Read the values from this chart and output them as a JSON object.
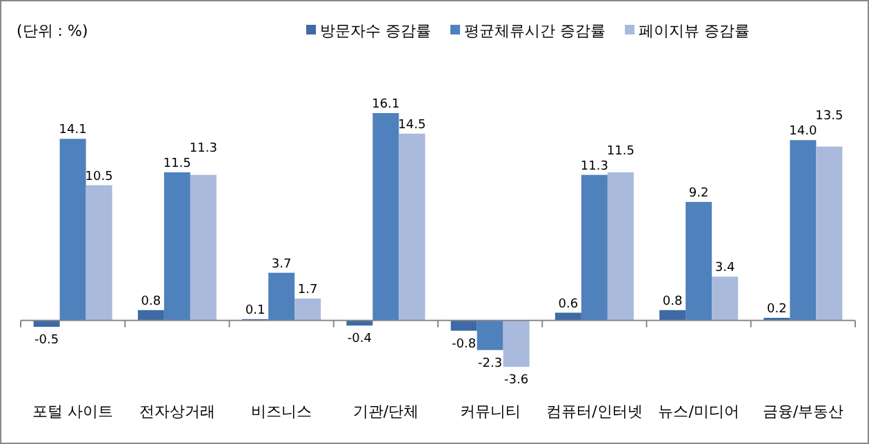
{
  "chart_data": {
    "type": "bar",
    "annotations": [
      "(단위 : %)"
    ],
    "categories": [
      "포털 사이트",
      "전자상거래",
      "비즈니스",
      "기관/단체",
      "커뮤니티",
      "컴퓨터/인터넷",
      "뉴스/미디어",
      "금융/부동산"
    ],
    "series": [
      {
        "name": "방문자수 증감률",
        "color": "#3e6aa6",
        "values": [
          -0.5,
          0.8,
          0.1,
          -0.4,
          -0.8,
          0.6,
          0.8,
          0.2
        ],
        "value_labels": [
          "-0.5",
          "0.8",
          "0.1",
          "-0.4",
          "-0.8",
          "0.6",
          "0.8",
          "0.2"
        ]
      },
      {
        "name": "평균체류시간 증감률",
        "color": "#4f81bd",
        "values": [
          14.1,
          11.5,
          3.7,
          16.1,
          -2.3,
          11.3,
          9.2,
          14.0
        ],
        "value_labels": [
          "14.1",
          "11.5",
          "3.7",
          "16.1",
          "-2.3",
          "11.3",
          "9.2",
          "14.0"
        ]
      },
      {
        "name": "페이지뷰 증감률",
        "color": "#a9badd",
        "values": [
          10.5,
          11.3,
          1.7,
          14.5,
          -3.6,
          11.5,
          3.4,
          13.5
        ],
        "value_labels": [
          "10.5",
          "11.3",
          "1.7",
          "14.5",
          "-3.6",
          "11.5",
          "3.4",
          "13.5"
        ]
      }
    ],
    "legend": "top"
  }
}
